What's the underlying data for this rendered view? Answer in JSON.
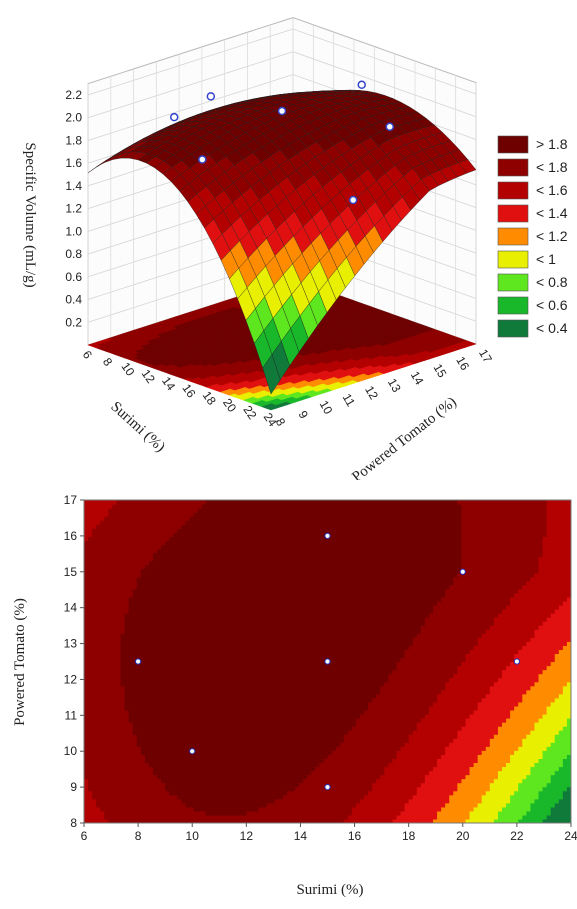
{
  "chart_data": [
    {
      "type": "surface",
      "zlabel": "Specific Volume (mL/g)",
      "xlabel": "Surimi (%)",
      "ylabel": "Powered Tomato (%)",
      "x_ticks": [
        "6",
        "8",
        "10",
        "12",
        "14",
        "16",
        "18",
        "20",
        "22",
        "24"
      ],
      "y_ticks": [
        "8",
        "9",
        "10",
        "11",
        "12",
        "13",
        "14",
        "15",
        "16",
        "17"
      ],
      "z_ticks": [
        "0.2",
        "0.4",
        "0.6",
        "0.8",
        "1.0",
        "1.2",
        "1.4",
        "1.6",
        "1.8",
        "2.0",
        "2.2"
      ],
      "xlim": [
        6,
        24
      ],
      "ylim": [
        8,
        17
      ],
      "zlim": [
        0,
        2.2
      ],
      "legend_position": "right",
      "legend": [
        {
          "label": "> 1.8",
          "color": "#6e0000"
        },
        {
          "label": "< 1.8",
          "color": "#8e0000"
        },
        {
          "label": "< 1.6",
          "color": "#b30000"
        },
        {
          "label": "< 1.4",
          "color": "#e01010"
        },
        {
          "label": "< 1.2",
          "color": "#ff8c00"
        },
        {
          "label": "< 1",
          "color": "#e8ef00"
        },
        {
          "label": "< 0.8",
          "color": "#5ee61e"
        },
        {
          "label": "< 0.6",
          "color": "#18b82a"
        },
        {
          "label": "< 0.4",
          "color": "#0f7a3a"
        }
      ],
      "design_points": [
        {
          "x": 8,
          "y": 12.5
        },
        {
          "x": 10,
          "y": 10
        },
        {
          "x": 15,
          "y": 9
        },
        {
          "x": 15,
          "y": 12.5
        },
        {
          "x": 15,
          "y": 16
        },
        {
          "x": 20,
          "y": 15
        },
        {
          "x": 22,
          "y": 12.5
        }
      ]
    },
    {
      "type": "contour",
      "xlabel": "Surimi (%)",
      "ylabel": "Powered Tomato (%)",
      "x_ticks": [
        "6",
        "8",
        "10",
        "12",
        "14",
        "16",
        "18",
        "20",
        "22",
        "24"
      ],
      "y_ticks": [
        "8",
        "9",
        "10",
        "11",
        "12",
        "13",
        "14",
        "15",
        "16",
        "17"
      ],
      "xlim": [
        6,
        24
      ],
      "ylim": [
        8,
        17
      ],
      "points": [
        {
          "x": 8,
          "y": 12.5
        },
        {
          "x": 10,
          "y": 10
        },
        {
          "x": 15,
          "y": 9
        },
        {
          "x": 15,
          "y": 12.5
        },
        {
          "x": 15,
          "y": 16
        },
        {
          "x": 20,
          "y": 15
        },
        {
          "x": 22,
          "y": 12.5
        }
      ]
    }
  ]
}
